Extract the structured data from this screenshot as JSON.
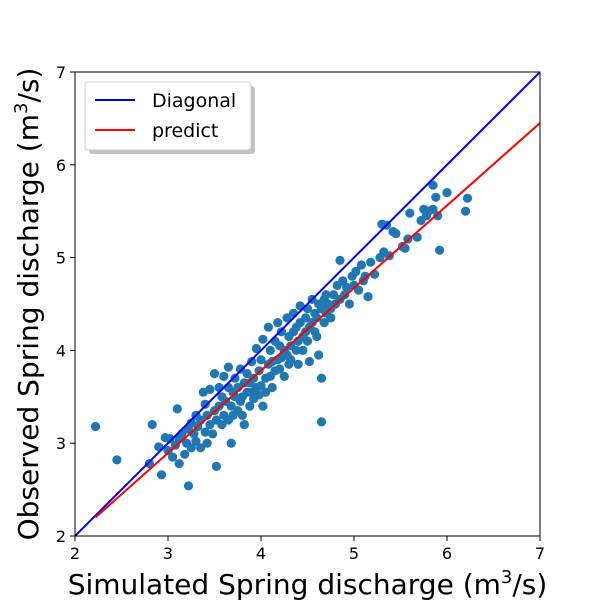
{
  "chart_data": {
    "type": "scatter",
    "xlabel": "Simulated Spring discharge (m",
    "xlabel_sup": "3",
    "xlabel_suffix": "/s)",
    "ylabel": "Observed Spring discharge (m",
    "ylabel_sup": "3",
    "ylabel_suffix": "/s)",
    "xlim": [
      2,
      7
    ],
    "ylim": [
      2,
      7
    ],
    "xticks": [
      "2",
      "3",
      "4",
      "5",
      "6",
      "7"
    ],
    "yticks": [
      "2",
      "3",
      "4",
      "5",
      "6",
      "7"
    ],
    "grid": false,
    "legend_position": "top-left",
    "legend": [
      {
        "label": "Diagonal",
        "color": "#0000ff"
      },
      {
        "label": "predict",
        "color": "#ff0000"
      }
    ],
    "lines": [
      {
        "name": "Diagonal",
        "color": "#0000ff",
        "x": [
          2,
          7
        ],
        "y": [
          2,
          7
        ]
      },
      {
        "name": "predict",
        "color": "#ff0000",
        "x": [
          2.22,
          7
        ],
        "y": [
          2.2,
          6.45
        ]
      }
    ],
    "scatter_color": "#1f77b4",
    "points": [
      [
        2.22,
        3.18
      ],
      [
        2.45,
        2.82
      ],
      [
        2.8,
        2.78
      ],
      [
        2.83,
        3.2
      ],
      [
        2.9,
        2.96
      ],
      [
        2.93,
        2.66
      ],
      [
        2.97,
        3.06
      ],
      [
        3.0,
        2.92
      ],
      [
        3.02,
        3.05
      ],
      [
        3.05,
        2.85
      ],
      [
        3.08,
        2.98
      ],
      [
        3.1,
        3.37
      ],
      [
        3.12,
        2.78
      ],
      [
        3.12,
        3.05
      ],
      [
        3.15,
        3.1
      ],
      [
        3.18,
        2.88
      ],
      [
        3.2,
        3.0
      ],
      [
        3.22,
        2.54
      ],
      [
        3.22,
        3.15
      ],
      [
        3.25,
        2.95
      ],
      [
        3.25,
        3.22
      ],
      [
        3.28,
        3.1
      ],
      [
        3.3,
        3.02
      ],
      [
        3.3,
        3.3
      ],
      [
        3.32,
        3.18
      ],
      [
        3.35,
        2.95
      ],
      [
        3.35,
        3.25
      ],
      [
        3.38,
        3.55
      ],
      [
        3.4,
        3.12
      ],
      [
        3.4,
        3.42
      ],
      [
        3.42,
        3.0
      ],
      [
        3.42,
        3.3
      ],
      [
        3.45,
        3.2
      ],
      [
        3.45,
        3.58
      ],
      [
        3.48,
        3.1
      ],
      [
        3.5,
        3.35
      ],
      [
        3.5,
        3.75
      ],
      [
        3.52,
        2.75
      ],
      [
        3.52,
        3.25
      ],
      [
        3.55,
        3.4
      ],
      [
        3.55,
        3.6
      ],
      [
        3.58,
        3.2
      ],
      [
        3.58,
        3.5
      ],
      [
        3.6,
        3.3
      ],
      [
        3.6,
        3.72
      ],
      [
        3.62,
        3.45
      ],
      [
        3.65,
        3.25
      ],
      [
        3.65,
        3.6
      ],
      [
        3.65,
        3.82
      ],
      [
        3.68,
        3.0
      ],
      [
        3.68,
        3.4
      ],
      [
        3.7,
        3.55
      ],
      [
        3.7,
        3.3
      ],
      [
        3.72,
        3.5
      ],
      [
        3.72,
        3.7
      ],
      [
        3.75,
        3.35
      ],
      [
        3.75,
        3.6
      ],
      [
        3.78,
        3.45
      ],
      [
        3.78,
        3.8
      ],
      [
        3.8,
        3.5
      ],
      [
        3.8,
        3.3
      ],
      [
        3.82,
        3.65
      ],
      [
        3.82,
        3.2
      ],
      [
        3.85,
        3.55
      ],
      [
        3.85,
        3.75
      ],
      [
        3.88,
        3.4
      ],
      [
        3.88,
        3.65
      ],
      [
        3.9,
        3.55
      ],
      [
        3.9,
        3.88
      ],
      [
        3.92,
        3.48
      ],
      [
        3.92,
        3.7
      ],
      [
        3.95,
        3.6
      ],
      [
        3.95,
        4.02
      ],
      [
        3.98,
        3.52
      ],
      [
        3.98,
        3.78
      ],
      [
        4.0,
        3.62
      ],
      [
        4.0,
        3.9
      ],
      [
        4.02,
        3.4
      ],
      [
        4.02,
        4.12
      ],
      [
        4.05,
        3.7
      ],
      [
        4.05,
        3.55
      ],
      [
        4.08,
        3.85
      ],
      [
        4.08,
        4.25
      ],
      [
        4.1,
        3.72
      ],
      [
        4.1,
        4.0
      ],
      [
        4.12,
        3.6
      ],
      [
        4.12,
        3.88
      ],
      [
        4.15,
        3.78
      ],
      [
        4.15,
        4.1
      ],
      [
        4.18,
        3.9
      ],
      [
        4.18,
        4.3
      ],
      [
        4.2,
        3.8
      ],
      [
        4.2,
        4.05
      ],
      [
        4.22,
        3.92
      ],
      [
        4.22,
        4.2
      ],
      [
        4.25,
        3.72
      ],
      [
        4.25,
        4.0
      ],
      [
        4.28,
        3.95
      ],
      [
        4.28,
        4.35
      ],
      [
        4.3,
        3.85
      ],
      [
        4.3,
        4.15
      ],
      [
        4.32,
        4.05
      ],
      [
        4.32,
        3.9
      ],
      [
        4.35,
        4.2
      ],
      [
        4.35,
        4.4
      ],
      [
        4.38,
        4.0
      ],
      [
        4.38,
        4.25
      ],
      [
        4.4,
        4.1
      ],
      [
        4.4,
        3.85
      ],
      [
        4.42,
        4.3
      ],
      [
        4.42,
        4.48
      ],
      [
        4.45,
        4.15
      ],
      [
        4.45,
        4.0
      ],
      [
        4.48,
        4.35
      ],
      [
        4.48,
        4.2
      ],
      [
        4.5,
        4.1
      ],
      [
        4.5,
        4.45
      ],
      [
        4.52,
        4.25
      ],
      [
        4.52,
        3.88
      ],
      [
        4.55,
        4.3
      ],
      [
        4.55,
        4.55
      ],
      [
        4.58,
        4.2
      ],
      [
        4.58,
        4.4
      ],
      [
        4.6,
        4.35
      ],
      [
        4.6,
        4.15
      ],
      [
        4.62,
        4.5
      ],
      [
        4.62,
        3.95
      ],
      [
        4.65,
        4.45
      ],
      [
        4.65,
        3.7
      ],
      [
        4.65,
        3.23
      ],
      [
        4.68,
        4.3
      ],
      [
        4.68,
        4.55
      ],
      [
        4.7,
        4.4
      ],
      [
        4.7,
        4.6
      ],
      [
        4.72,
        4.5
      ],
      [
        4.75,
        4.35
      ],
      [
        4.75,
        4.45
      ],
      [
        4.78,
        4.6
      ],
      [
        4.8,
        4.5
      ],
      [
        4.82,
        4.7
      ],
      [
        4.85,
        4.97
      ],
      [
        4.85,
        4.55
      ],
      [
        4.88,
        4.75
      ],
      [
        4.9,
        4.6
      ],
      [
        4.92,
        4.68
      ],
      [
        4.95,
        4.5
      ],
      [
        4.98,
        4.8
      ],
      [
        5.0,
        4.7
      ],
      [
        5.02,
        4.85
      ],
      [
        5.05,
        4.65
      ],
      [
        5.08,
        4.92
      ],
      [
        5.1,
        4.75
      ],
      [
        5.12,
        4.8
      ],
      [
        5.15,
        4.58
      ],
      [
        5.18,
        4.95
      ],
      [
        5.22,
        4.82
      ],
      [
        5.28,
        5.0
      ],
      [
        5.3,
        5.36
      ],
      [
        5.32,
        5.06
      ],
      [
        5.35,
        5.35
      ],
      [
        5.38,
        5.02
      ],
      [
        5.42,
        5.28
      ],
      [
        5.45,
        5.26
      ],
      [
        5.52,
        5.12
      ],
      [
        5.55,
        5.1
      ],
      [
        5.58,
        5.2
      ],
      [
        5.6,
        5.48
      ],
      [
        5.68,
        5.22
      ],
      [
        5.72,
        5.4
      ],
      [
        5.75,
        5.52
      ],
      [
        5.78,
        5.45
      ],
      [
        5.8,
        5.5
      ],
      [
        5.85,
        5.78
      ],
      [
        5.85,
        5.52
      ],
      [
        5.88,
        5.65
      ],
      [
        5.9,
        5.45
      ],
      [
        5.92,
        5.08
      ],
      [
        6.0,
        5.7
      ],
      [
        6.2,
        5.5
      ],
      [
        6.22,
        5.64
      ]
    ]
  }
}
